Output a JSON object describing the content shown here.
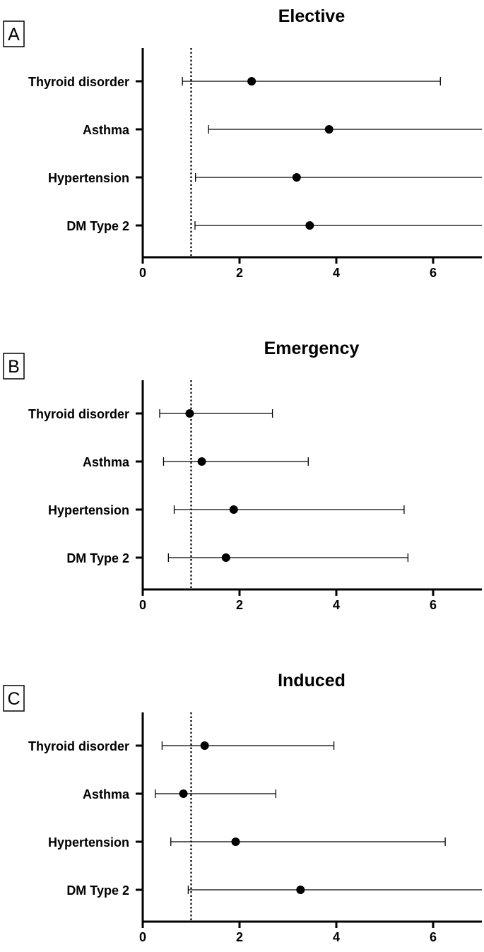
{
  "chart_data": [
    {
      "type": "forest",
      "panel_label": "A",
      "title": "Elective",
      "categories": [
        "Thyroid disorder",
        "Asthma",
        "Hypertension",
        "DM Type 2"
      ],
      "estimates": [
        2.25,
        3.85,
        3.18,
        3.45
      ],
      "ci_lower": [
        0.82,
        1.36,
        1.09,
        1.08
      ],
      "ci_upper": [
        6.15,
        7.0,
        7.0,
        7.0
      ],
      "ci_upper_truncated": [
        false,
        true,
        true,
        true
      ],
      "reference_line": 1,
      "xlim": [
        0,
        7
      ],
      "xticks": [
        "0",
        "2",
        "4",
        "6"
      ],
      "xlabel": "",
      "ylabel": ""
    },
    {
      "type": "forest",
      "panel_label": "B",
      "title": "Emergency",
      "categories": [
        "Thyroid disorder",
        "Asthma",
        "Hypertension",
        "DM Type 2"
      ],
      "estimates": [
        0.97,
        1.22,
        1.88,
        1.72
      ],
      "ci_lower": [
        0.35,
        0.43,
        0.65,
        0.53
      ],
      "ci_upper": [
        2.68,
        3.42,
        5.4,
        5.48
      ],
      "ci_upper_truncated": [
        false,
        false,
        false,
        false
      ],
      "reference_line": 1,
      "xlim": [
        0,
        7
      ],
      "xticks": [
        "0",
        "2",
        "4",
        "6"
      ],
      "xlabel": "",
      "ylabel": ""
    },
    {
      "type": "forest",
      "panel_label": "C",
      "title": "Induced",
      "categories": [
        "Thyroid disorder",
        "Asthma",
        "Hypertension",
        "DM Type 2"
      ],
      "estimates": [
        1.28,
        0.84,
        1.92,
        3.26
      ],
      "ci_lower": [
        0.4,
        0.26,
        0.58,
        0.94
      ],
      "ci_upper": [
        3.95,
        2.75,
        6.25,
        7.0
      ],
      "ci_upper_truncated": [
        false,
        false,
        false,
        true
      ],
      "reference_line": 1,
      "xlim": [
        0,
        7
      ],
      "xticks": [
        "0",
        "2",
        "4",
        "6"
      ],
      "xlabel": "",
      "ylabel": ""
    }
  ]
}
